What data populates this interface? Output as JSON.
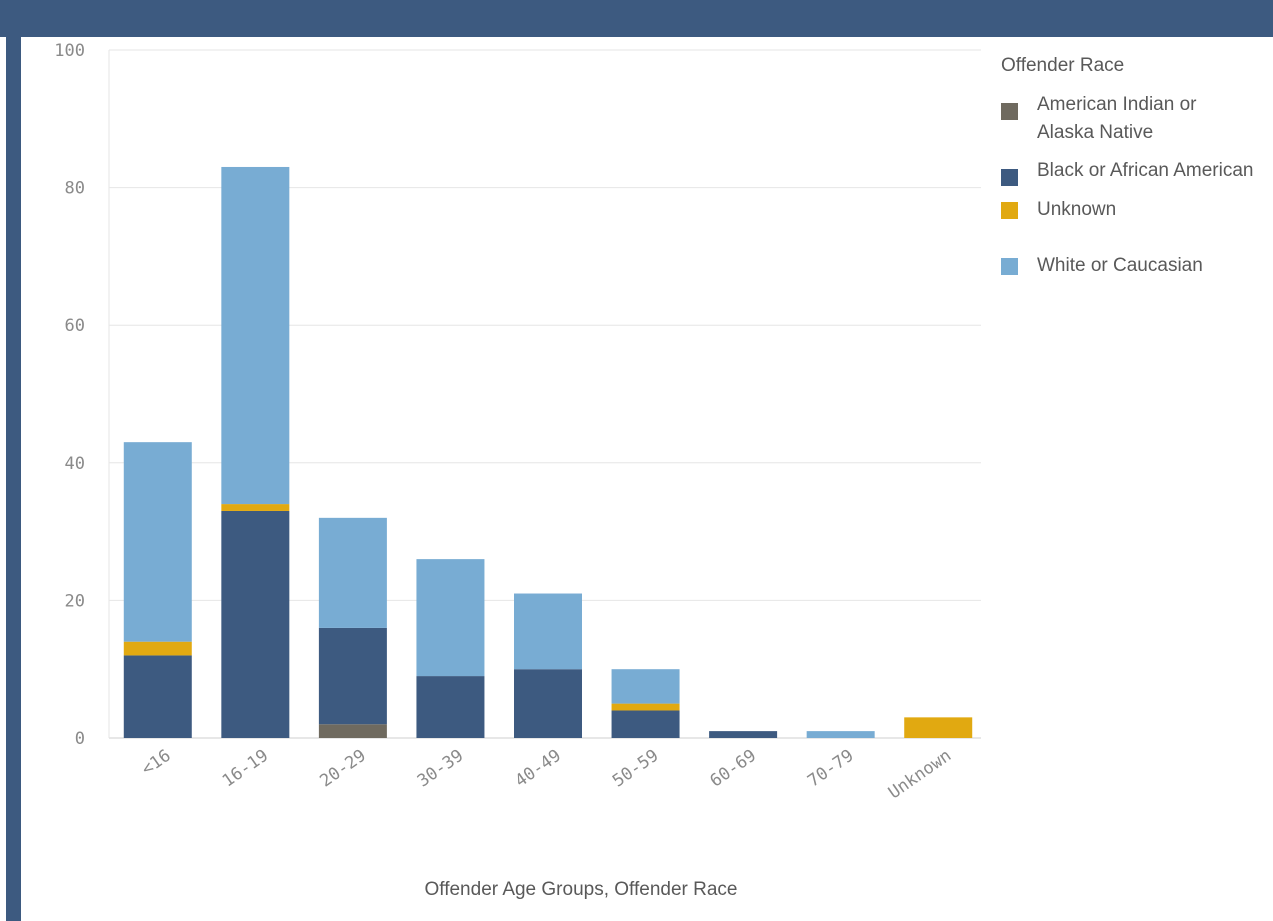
{
  "chart_data": {
    "type": "bar",
    "stacked": true,
    "categories": [
      "<16",
      "16-19",
      "20-29",
      "30-39",
      "40-49",
      "50-59",
      "60-69",
      "70-79",
      "Unknown"
    ],
    "series": [
      {
        "name": "American Indian or Alaska Native",
        "color": "#6f6a5f",
        "values": [
          0,
          0,
          2,
          0,
          0,
          0,
          0,
          0,
          0
        ]
      },
      {
        "name": "Black or African American",
        "color": "#3d5a80",
        "values": [
          12,
          33,
          14,
          9,
          10,
          4,
          1,
          0,
          0
        ]
      },
      {
        "name": "Unknown",
        "color": "#e1a911",
        "values": [
          2,
          1,
          0,
          0,
          0,
          1,
          0,
          0,
          3
        ]
      },
      {
        "name": "White or Caucasian",
        "color": "#78acd3",
        "values": [
          29,
          49,
          16,
          17,
          11,
          5,
          0,
          1,
          0
        ]
      }
    ],
    "y_ticks": [
      "0",
      "20",
      "40",
      "60",
      "80",
      "100"
    ],
    "x_tick_labels": [
      "<16",
      "16-19",
      "20-29",
      "30-39",
      "40-49",
      "50-59",
      "60-69",
      "70-79",
      "Unknown"
    ],
    "ylim": [
      0,
      100
    ],
    "xlabel": "Offender Age Groups, Offender Race",
    "legend_title": "Offender Race",
    "legend_position": "right",
    "grid": true
  },
  "colors": {
    "frame": "#3d5a80",
    "grid": "#e6e6e6"
  }
}
